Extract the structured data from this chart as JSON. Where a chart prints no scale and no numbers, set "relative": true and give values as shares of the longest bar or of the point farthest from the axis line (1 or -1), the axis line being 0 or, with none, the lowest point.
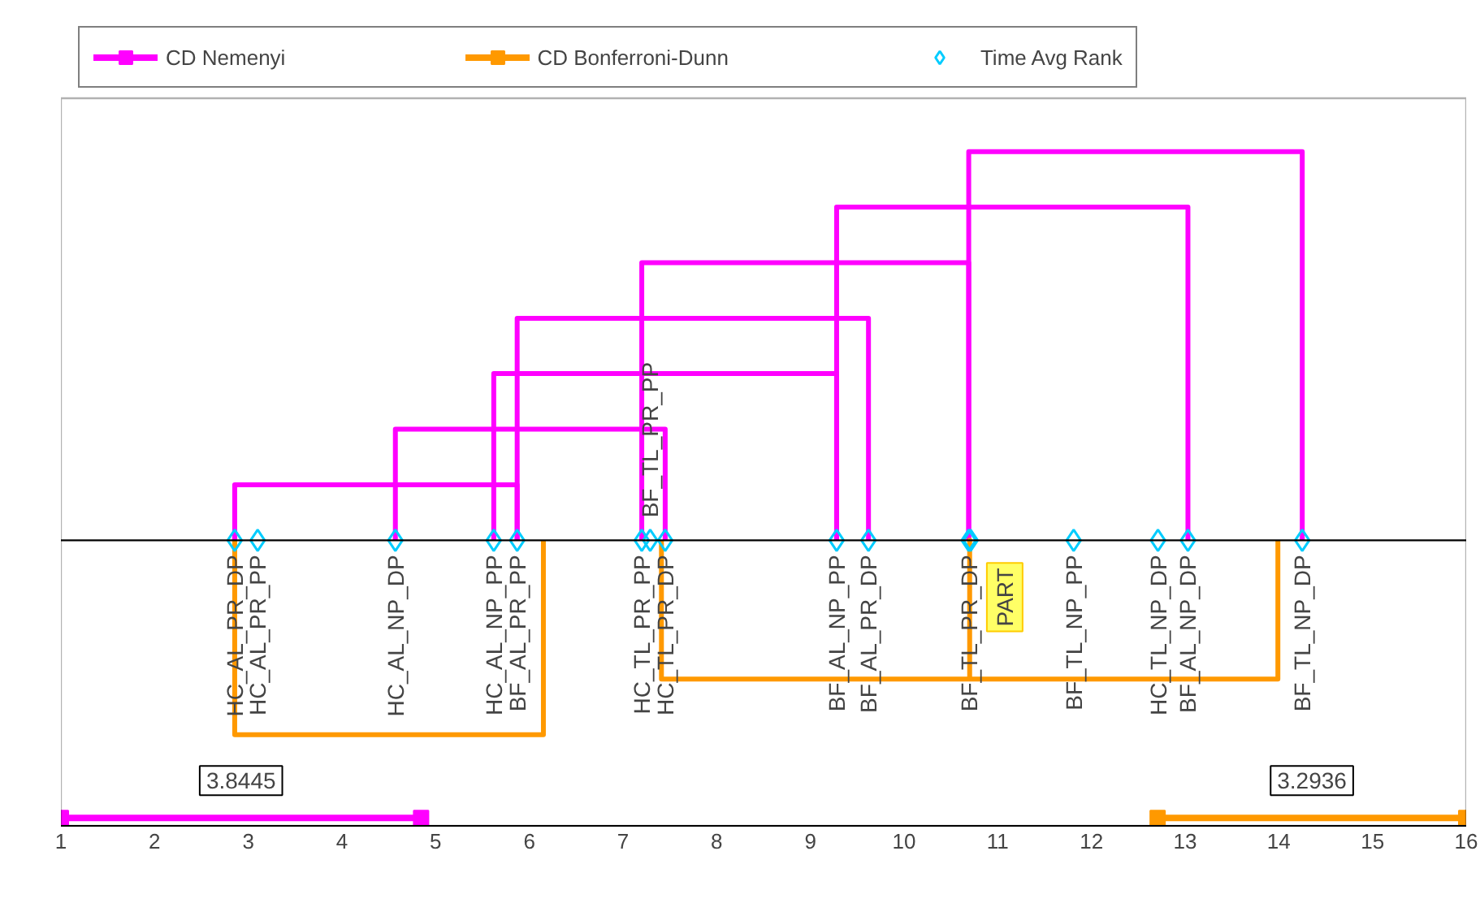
{
  "chart_data": {
    "type": "line",
    "relative": true,
    "xlim": [
      1,
      16
    ],
    "xticks": [
      1,
      2,
      3,
      4,
      5,
      6,
      7,
      8,
      9,
      10,
      11,
      12,
      13,
      14,
      15,
      16
    ],
    "grid": false,
    "legend": "top",
    "series": [
      {
        "name": "CD Nemenyi",
        "color": "#ff00ff",
        "marker": "square",
        "x": [
          1,
          4.8445
        ],
        "values": [
          -0.714,
          -0.714
        ]
      },
      {
        "type": "line",
        "color": "#ff00ff",
        "x": [
          2.855,
          2.855,
          5.87,
          5.87
        ],
        "values": [
          0,
          0.143,
          0.143,
          0
        ]
      },
      {
        "type": "line",
        "color": "#ff00ff",
        "x": [
          4.57,
          4.57,
          7.45,
          7.45
        ],
        "values": [
          0,
          0.286,
          0.286,
          0
        ]
      },
      {
        "type": "line",
        "color": "#ff00ff",
        "x": [
          5.62,
          5.62,
          9.28,
          9.28
        ],
        "values": [
          0,
          0.429,
          0.429,
          0
        ]
      },
      {
        "type": "line",
        "color": "#ff00ff",
        "x": [
          5.87,
          5.87,
          9.62,
          9.62
        ],
        "values": [
          0,
          0.571,
          0.571,
          0
        ]
      },
      {
        "type": "line",
        "color": "#ff00ff",
        "x": [
          7.2,
          7.2,
          10.69,
          10.69
        ],
        "values": [
          0,
          0.714,
          0.714,
          0
        ]
      },
      {
        "type": "line",
        "color": "#ff00ff",
        "x": [
          9.28,
          9.28,
          13.03,
          13.03
        ],
        "values": [
          0,
          0.857,
          0.857,
          0
        ]
      },
      {
        "type": "line",
        "color": "#ff00ff",
        "x": [
          10.69,
          10.69,
          14.25,
          14.25
        ],
        "values": [
          0,
          1,
          1,
          0
        ]
      },
      {
        "name": "CD Bonferroni-Dunn",
        "color": "#ff9900",
        "marker": "square",
        "x": [
          12.7064,
          16
        ],
        "values": [
          -0.714,
          -0.714
        ]
      },
      {
        "type": "line",
        "color": "#ff9900",
        "x": [
          2.855,
          2.855,
          6.15,
          6.15
        ],
        "values": [
          0,
          -0.5,
          -0.5,
          0
        ]
      },
      {
        "type": "line",
        "color": "#ff9900",
        "x": [
          7.41,
          7.41,
          10.7,
          10.7,
          10.7,
          13.99,
          13.99
        ],
        "values": [
          0,
          -0.357,
          -0.357,
          0,
          -0.357,
          -0.357,
          0
        ]
      },
      {
        "name": "Time Avg Rank",
        "type": "scatter",
        "color": "#00ccff",
        "marker": "diamond",
        "x": [
          2.855,
          3.1,
          4.57,
          5.62,
          5.87,
          7.2,
          7.29,
          7.45,
          9.28,
          9.62,
          10.69,
          10.71,
          11.81,
          12.71,
          13.03,
          14.25
        ],
        "values": [
          0,
          0,
          0,
          0,
          0,
          0,
          0,
          0,
          0,
          0,
          0,
          0,
          0,
          0,
          0,
          0
        ]
      }
    ],
    "annotations": [
      {
        "text": "HC_AL_PR_DP",
        "x": 2.855,
        "y": 0
      },
      {
        "text": "HC_AL_PR_PP",
        "x": 3.1,
        "y": 0
      },
      {
        "text": "HC_AL_NP_DP",
        "x": 4.57,
        "y": 0
      },
      {
        "text": "HC_AL_NP_PP",
        "x": 5.62,
        "y": 0
      },
      {
        "text": "BF_AL_PR_PP",
        "x": 5.87,
        "y": 0
      },
      {
        "text": "HC_TL_PR_PP",
        "x": 7.2,
        "y": 0
      },
      {
        "text": "BF_TL_PR_PP",
        "x": 7.29,
        "y": 0
      },
      {
        "text": "HC_TL_PR_DP",
        "x": 7.45,
        "y": 0
      },
      {
        "text": "BF_AL_NP_PP",
        "x": 9.28,
        "y": 0
      },
      {
        "text": "BF_AL_PR_DP",
        "x": 9.62,
        "y": 0
      },
      {
        "text": "BF_TL_PR_DP",
        "x": 10.69,
        "y": 0
      },
      {
        "text": "PART",
        "x": 10.71,
        "y": 0
      },
      {
        "text": "BF_TL_NP_PP",
        "x": 11.81,
        "y": 0
      },
      {
        "text": "HC_TL_NP_DP",
        "x": 12.71,
        "y": 0
      },
      {
        "text": "BF_AL_NP_DP",
        "x": 13.03,
        "y": 0
      },
      {
        "text": "BF_TL_NP_DP",
        "x": 14.25,
        "y": 0
      },
      "3.8445",
      "3.2936"
    ]
  }
}
